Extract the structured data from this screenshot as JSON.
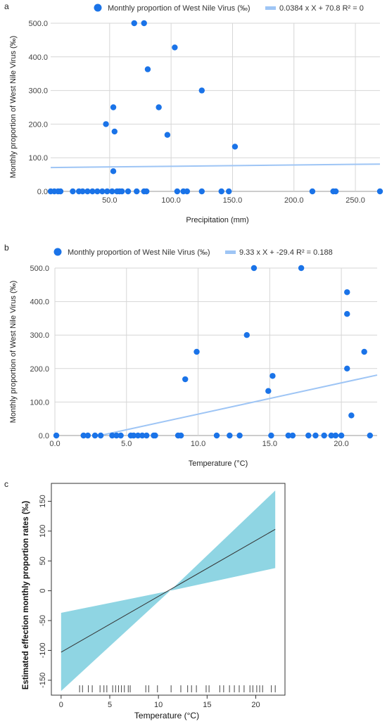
{
  "chart_data": [
    {
      "panel": "a",
      "type": "scatter",
      "xlabel": "Precipitation (mm)",
      "ylabel": "Monthly proportion of  West Nile Virus (‰)",
      "xlim": [
        2,
        270
      ],
      "ylim": [
        0,
        500
      ],
      "xticks": [
        "50.0",
        "100.0",
        "150.0",
        "200.0",
        "250.0"
      ],
      "yticks": [
        "0.0",
        "100.0",
        "200.0",
        "300.0",
        "400.0",
        "500.0"
      ],
      "grid": true,
      "legend": {
        "position": "top",
        "points_label": "Monthly proportion of  West Nile Virus (‰)",
        "trend_label": "0.0384 x X + 70.8 R² = 0"
      },
      "colors": {
        "points": "#1a73e8",
        "trend": "#9ec5f5"
      },
      "trendline": {
        "slope": 0.0384,
        "intercept": 70.8
      },
      "points": [
        [
          2,
          0
        ],
        [
          5,
          0
        ],
        [
          8,
          0
        ],
        [
          10,
          0
        ],
        [
          20,
          0
        ],
        [
          25,
          0
        ],
        [
          28,
          0
        ],
        [
          32,
          0
        ],
        [
          36,
          0
        ],
        [
          40,
          0
        ],
        [
          44,
          0
        ],
        [
          48,
          0
        ],
        [
          52,
          0
        ],
        [
          56,
          0
        ],
        [
          58,
          0
        ],
        [
          60,
          0
        ],
        [
          65,
          0
        ],
        [
          72,
          0
        ],
        [
          78,
          0
        ],
        [
          80,
          0
        ],
        [
          105,
          0
        ],
        [
          110,
          0
        ],
        [
          113,
          0
        ],
        [
          125,
          0
        ],
        [
          141,
          0
        ],
        [
          147,
          0
        ],
        [
          215,
          0
        ],
        [
          232,
          0
        ],
        [
          234,
          0
        ],
        [
          270,
          0
        ],
        [
          47,
          200
        ],
        [
          53,
          250
        ],
        [
          53,
          60
        ],
        [
          54,
          178
        ],
        [
          70,
          500
        ],
        [
          78,
          500
        ],
        [
          81,
          363
        ],
        [
          90,
          250
        ],
        [
          97,
          168
        ],
        [
          103,
          428
        ],
        [
          125,
          300
        ],
        [
          152,
          133
        ]
      ]
    },
    {
      "panel": "b",
      "type": "scatter",
      "xlabel": "Temperature  (°C)",
      "ylabel": "Monthly proportion of  West Nile Virus (‰)",
      "xlim": [
        0,
        22.5
      ],
      "ylim": [
        0,
        500
      ],
      "xticks": [
        "0.0",
        "5.0",
        "10.0",
        "15.0",
        "20.0"
      ],
      "yticks": [
        "0.0",
        "100.0",
        "200.0",
        "300.0",
        "400.0",
        "500.0"
      ],
      "grid": true,
      "legend": {
        "position": "top",
        "points_label": "Monthly proportion of  West Nile Virus (‰)",
        "trend_label": "9.33 x X + -29.4 R² = 0.188"
      },
      "colors": {
        "points": "#1a73e8",
        "trend": "#9ec5f5"
      },
      "trendline": {
        "slope": 9.33,
        "intercept": -29.4
      },
      "points": [
        [
          0.1,
          0
        ],
        [
          2.0,
          0
        ],
        [
          2.3,
          0
        ],
        [
          2.8,
          0
        ],
        [
          3.2,
          0
        ],
        [
          4.0,
          0
        ],
        [
          4.3,
          0
        ],
        [
          4.6,
          0
        ],
        [
          5.3,
          0
        ],
        [
          5.5,
          0
        ],
        [
          5.8,
          0
        ],
        [
          6.1,
          0
        ],
        [
          6.4,
          0
        ],
        [
          6.9,
          0
        ],
        [
          7.0,
          0
        ],
        [
          8.6,
          0
        ],
        [
          8.8,
          0
        ],
        [
          11.3,
          0
        ],
        [
          12.2,
          0
        ],
        [
          12.9,
          0
        ],
        [
          15.1,
          0
        ],
        [
          16.3,
          0
        ],
        [
          16.6,
          0
        ],
        [
          17.7,
          0
        ],
        [
          18.2,
          0
        ],
        [
          18.8,
          0
        ],
        [
          19.3,
          0
        ],
        [
          19.6,
          0
        ],
        [
          20.0,
          0
        ],
        [
          22.0,
          0
        ],
        [
          9.1,
          168
        ],
        [
          9.9,
          250
        ],
        [
          13.4,
          300
        ],
        [
          13.9,
          500
        ],
        [
          14.9,
          133
        ],
        [
          15.2,
          178
        ],
        [
          17.2,
          500
        ],
        [
          20.4,
          428
        ],
        [
          20.4,
          363
        ],
        [
          20.4,
          200
        ],
        [
          20.7,
          60
        ],
        [
          21.6,
          250
        ]
      ]
    },
    {
      "panel": "c",
      "type": "line",
      "xlabel": "Temperature  (°C)",
      "ylabel": "Estimated effection monthly proportion rates (‰)",
      "xlim": [
        -1,
        23
      ],
      "ylim": [
        -175,
        180
      ],
      "xticks": [
        "0",
        "5",
        "10",
        "15",
        "20"
      ],
      "yticks": [
        "-150",
        "-100",
        "-50",
        "0",
        "50",
        "100",
        "150"
      ],
      "grid": false,
      "colors": {
        "band": "#8fd5e3",
        "line": "#333333",
        "rug": "#444444"
      },
      "line": {
        "x": [
          0,
          22
        ],
        "y": [
          -103,
          103
        ]
      },
      "band": {
        "x": [
          0,
          11.2,
          22
        ],
        "lower": [
          -168,
          0,
          38
        ],
        "upper": [
          -37,
          0,
          168
        ]
      },
      "rug": [
        1.9,
        2.2,
        2.8,
        3.2,
        4.0,
        4.4,
        4.7,
        5.3,
        5.6,
        5.9,
        6.2,
        6.5,
        6.9,
        7.1,
        8.7,
        9.0,
        9.9,
        11.3,
        12.3,
        13.0,
        13.4,
        13.9,
        14.9,
        15.2,
        16.3,
        16.7,
        17.3,
        17.8,
        18.3,
        18.8,
        19.4,
        19.7,
        20.1,
        20.4,
        20.7,
        21.6,
        22.0
      ]
    }
  ]
}
